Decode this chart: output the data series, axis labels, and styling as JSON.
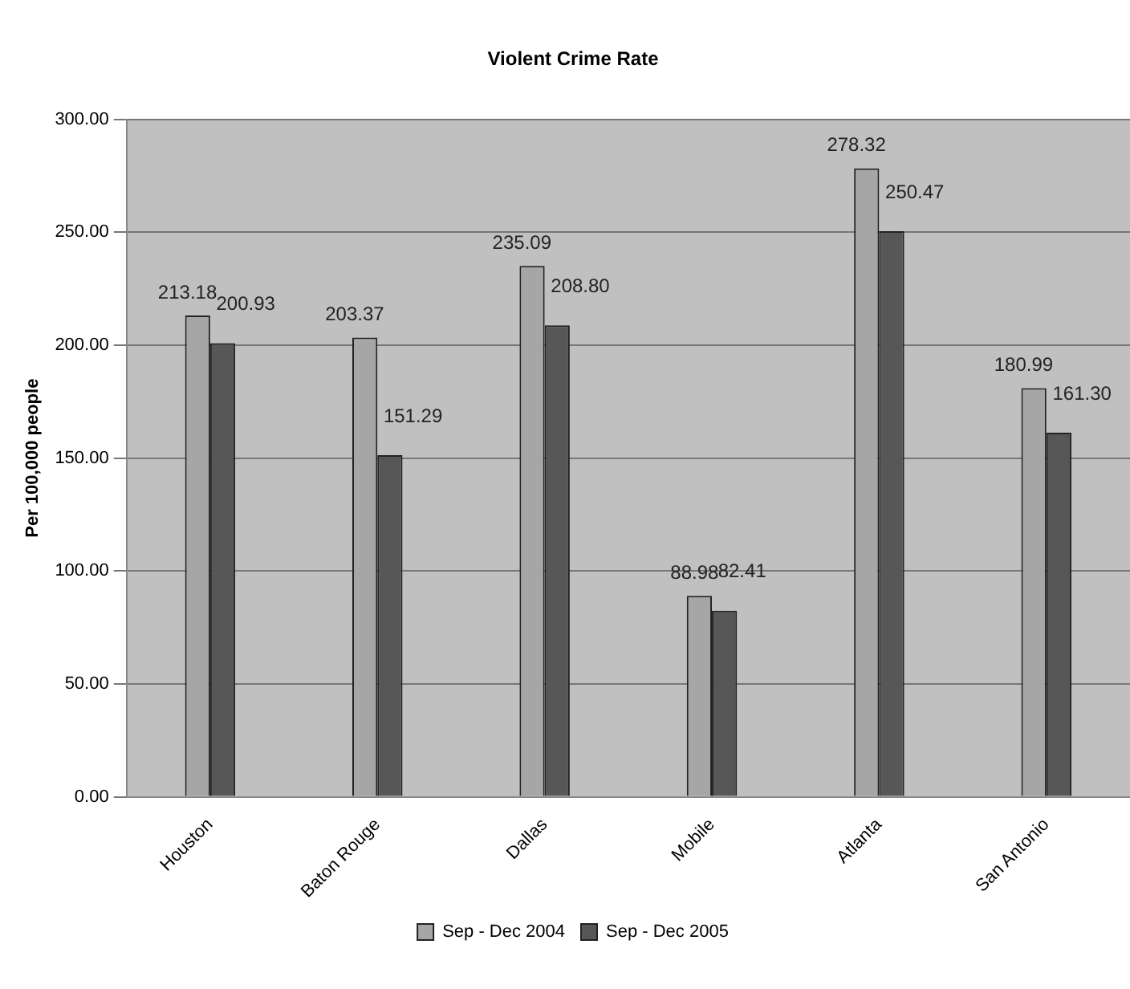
{
  "chart_data": {
    "type": "bar",
    "title": "Violent Crime Rate",
    "ylabel": "Per 100,000 people",
    "categories": [
      "Houston",
      "Baton Rouge",
      "Dallas",
      "Mobile",
      "Atlanta",
      "San Antonio"
    ],
    "series": [
      {
        "name": "Sep - Dec 2004",
        "color": "#a6a6a6",
        "values": [
          213.18,
          203.37,
          235.09,
          88.98,
          278.32,
          180.99
        ],
        "value_labels": [
          "213.18",
          "203.37",
          "235.09",
          "88.98",
          "278.32",
          "180.99"
        ]
      },
      {
        "name": "Sep - Dec 2005",
        "color": "#575757",
        "values": [
          200.93,
          151.29,
          208.8,
          82.41,
          250.47,
          161.3
        ],
        "value_labels": [
          "200.93",
          "151.29",
          "208.80",
          "82.41",
          "250.47",
          "161.30"
        ]
      }
    ],
    "ylim": [
      0,
      300
    ],
    "yticks": [
      {
        "value": 0,
        "label": "0.00"
      },
      {
        "value": 50,
        "label": "50.00"
      },
      {
        "value": 100,
        "label": "100.00"
      },
      {
        "value": 150,
        "label": "150.00"
      },
      {
        "value": 200,
        "label": "200.00"
      },
      {
        "value": 250,
        "label": "250.00"
      },
      {
        "value": 300,
        "label": "300.00"
      }
    ],
    "grid": "y",
    "legend": "bottom"
  }
}
